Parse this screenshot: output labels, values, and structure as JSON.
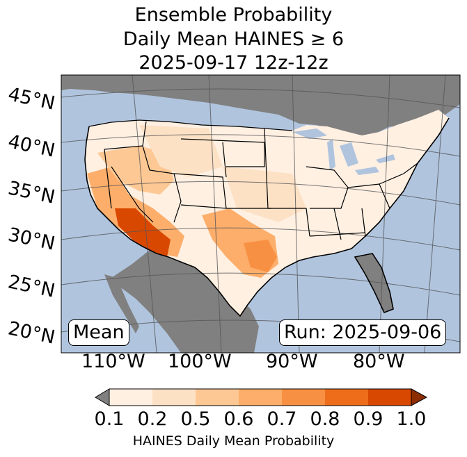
{
  "title_lines": [
    "Ensemble Probability",
    "Daily Mean HAINES ≥ 6",
    "2025-09-17 12z-12z"
  ],
  "lat_labels": [
    "45°N",
    "40°N",
    "35°N",
    "30°N",
    "25°N",
    "20°N"
  ],
  "lon_labels": [
    "110°W",
    "100°W",
    "90°W",
    "80°W"
  ],
  "stat_label": "Mean",
  "run_label": "Run: 2025-09-06",
  "colorbar": {
    "ticks": [
      "0.1",
      "0.2",
      "0.5",
      "0.6",
      "0.7",
      "0.8",
      "0.9",
      "1.0"
    ],
    "colors": [
      "#fff0e2",
      "#fde1c5",
      "#fdc894",
      "#fdae6b",
      "#f89043",
      "#ee6d1a",
      "#d94801",
      "#8c2d04"
    ],
    "under_color": "#808080",
    "label": "HAINES Daily Mean Probability"
  },
  "colors": {
    "ocean": "#b0c4de",
    "land_missing": "#808080",
    "low": "#fff0e2",
    "high": "#d94801"
  }
}
